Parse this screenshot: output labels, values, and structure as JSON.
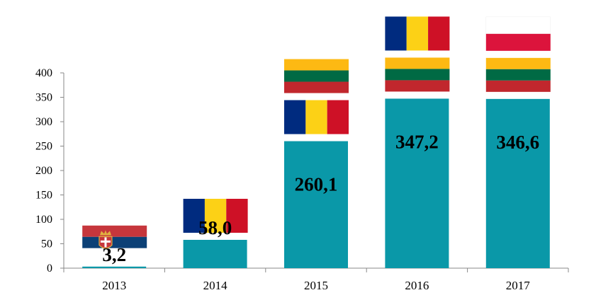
{
  "chart_data": {
    "type": "bar",
    "categories": [
      "2013",
      "2014",
      "2015",
      "2016",
      "2017"
    ],
    "values": [
      3.2,
      58.0,
      260.1,
      347.2,
      346.6
    ],
    "data_labels": [
      "3,2",
      "58,0",
      "260,1",
      "347,2",
      "346,6"
    ],
    "title": "",
    "xlabel": "",
    "ylabel": "",
    "ylim": [
      0,
      400
    ],
    "yticks": [
      0,
      50,
      100,
      150,
      200,
      250,
      300,
      350,
      400
    ],
    "grid": false,
    "bar_color": "#0a98a8",
    "flags": [
      [
        "serbia-flag"
      ],
      [
        "romania-flag"
      ],
      [
        "romania-flag",
        "lithuania-flag"
      ],
      [
        "lithuania-flag",
        "romania-flag"
      ],
      [
        "lithuania-flag",
        "poland-flag"
      ]
    ]
  }
}
